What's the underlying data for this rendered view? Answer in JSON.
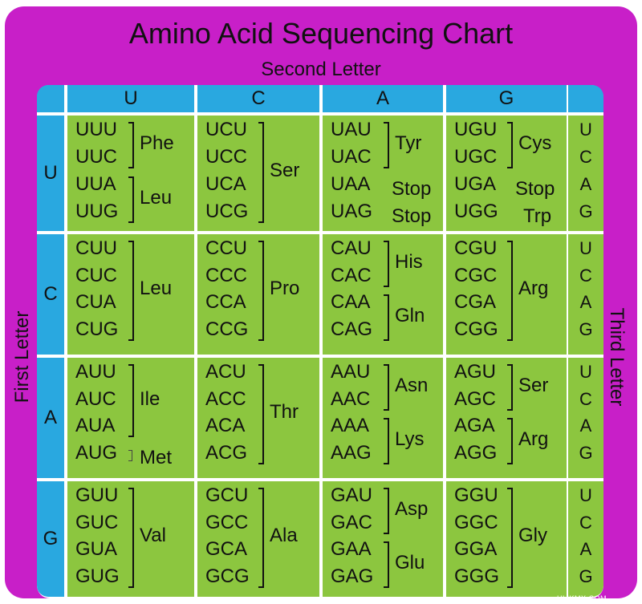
{
  "title": "Amino Acid Sequencing Chart",
  "second_letter_label": "Second Letter",
  "first_letter_label": "First Letter",
  "third_letter_label": "Third Letter",
  "watermark": "HLIKMX.COM",
  "colors": {
    "frame": "#c81fc8",
    "header": "#29a8e0",
    "cell": "#8cc63f"
  },
  "columns": [
    "U",
    "C",
    "A",
    "G"
  ],
  "rows": [
    "U",
    "C",
    "A",
    "G"
  ],
  "third_letters": [
    "U",
    "C",
    "A",
    "G"
  ],
  "grid": [
    [
      {
        "codons": [
          "UUU",
          "UUC",
          "UUA",
          "UUG"
        ],
        "groups": [
          {
            "label": "Phe",
            "span": [
              0,
              1
            ]
          },
          {
            "label": "Leu",
            "span": [
              2,
              3
            ]
          }
        ]
      },
      {
        "codons": [
          "UCU",
          "UCC",
          "UCA",
          "UCG"
        ],
        "groups": [
          {
            "label": "Ser",
            "span": [
              0,
              3
            ]
          }
        ]
      },
      {
        "codons": [
          "UAU",
          "UAC",
          "UAA",
          "UAG"
        ],
        "groups": [
          {
            "label": "Tyr",
            "span": [
              0,
              1
            ]
          },
          {
            "label": "Stop",
            "span": [
              2,
              2
            ]
          },
          {
            "label": "Stop",
            "span": [
              3,
              3
            ]
          }
        ]
      },
      {
        "codons": [
          "UGU",
          "UGC",
          "UGA",
          "UGG"
        ],
        "groups": [
          {
            "label": "Cys",
            "span": [
              0,
              1
            ]
          },
          {
            "label": "Stop",
            "span": [
              2,
              2
            ]
          },
          {
            "label": "Trp",
            "span": [
              3,
              3
            ]
          }
        ]
      }
    ],
    [
      {
        "codons": [
          "CUU",
          "CUC",
          "CUA",
          "CUG"
        ],
        "groups": [
          {
            "label": "Leu",
            "span": [
              0,
              3
            ]
          }
        ]
      },
      {
        "codons": [
          "CCU",
          "CCC",
          "CCA",
          "CCG"
        ],
        "groups": [
          {
            "label": "Pro",
            "span": [
              0,
              3
            ]
          }
        ]
      },
      {
        "codons": [
          "CAU",
          "CAC",
          "CAA",
          "CAG"
        ],
        "groups": [
          {
            "label": "His",
            "span": [
              0,
              1
            ]
          },
          {
            "label": "Gln",
            "span": [
              2,
              3
            ]
          }
        ]
      },
      {
        "codons": [
          "CGU",
          "CGC",
          "CGA",
          "CGG"
        ],
        "groups": [
          {
            "label": "Arg",
            "span": [
              0,
              3
            ]
          }
        ]
      }
    ],
    [
      {
        "codons": [
          "AUU",
          "AUC",
          "AUA",
          "AUG"
        ],
        "groups": [
          {
            "label": "Ile",
            "span": [
              0,
              2
            ]
          },
          {
            "label": "Met",
            "span": [
              3,
              3
            ]
          }
        ]
      },
      {
        "codons": [
          "ACU",
          "ACC",
          "ACA",
          "ACG"
        ],
        "groups": [
          {
            "label": "Thr",
            "span": [
              0,
              3
            ]
          }
        ]
      },
      {
        "codons": [
          "AAU",
          "AAC",
          "AAA",
          "AAG"
        ],
        "groups": [
          {
            "label": "Asn",
            "span": [
              0,
              1
            ]
          },
          {
            "label": "Lys",
            "span": [
              2,
              3
            ]
          }
        ]
      },
      {
        "codons": [
          "AGU",
          "AGC",
          "AGA",
          "AGG"
        ],
        "groups": [
          {
            "label": "Ser",
            "span": [
              0,
              1
            ]
          },
          {
            "label": "Arg",
            "span": [
              2,
              3
            ]
          }
        ]
      }
    ],
    [
      {
        "codons": [
          "GUU",
          "GUC",
          "GUA",
          "GUG"
        ],
        "groups": [
          {
            "label": "Val",
            "span": [
              0,
              3
            ]
          }
        ]
      },
      {
        "codons": [
          "GCU",
          "GCC",
          "GCA",
          "GCG"
        ],
        "groups": [
          {
            "label": "Ala",
            "span": [
              0,
              3
            ]
          }
        ]
      },
      {
        "codons": [
          "GAU",
          "GAC",
          "GAA",
          "GAG"
        ],
        "groups": [
          {
            "label": "Asp",
            "span": [
              0,
              1
            ]
          },
          {
            "label": "Glu",
            "span": [
              2,
              3
            ]
          }
        ]
      },
      {
        "codons": [
          "GGU",
          "GGC",
          "GGA",
          "GGG"
        ],
        "groups": [
          {
            "label": "Gly",
            "span": [
              0,
              3
            ]
          }
        ]
      }
    ]
  ]
}
